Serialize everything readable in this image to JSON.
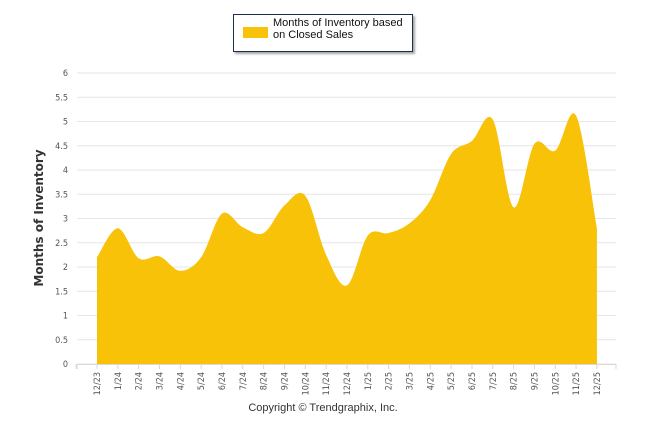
{
  "chart_data": {
    "type": "area",
    "title": "",
    "xlabel": "",
    "ylabel": "Months of Inventory",
    "ylim": [
      0,
      6
    ],
    "yticks": [
      "0",
      "0.5",
      "1",
      "1.5",
      "2",
      "2.5",
      "3",
      "3.5",
      "4",
      "4.5",
      "5",
      "5.5",
      "6"
    ],
    "grid": true,
    "legend_position": "top-center",
    "categories": [
      "12/23",
      "1/24",
      "2/24",
      "3/24",
      "4/24",
      "5/24",
      "6/24",
      "7/24",
      "8/24",
      "9/24",
      "10/24",
      "11/24",
      "12/24",
      "1/25",
      "2/25",
      "3/25",
      "4/25",
      "5/25",
      "6/25",
      "7/25",
      "8/25",
      "9/25",
      "10/25",
      "11/25",
      "12/25"
    ],
    "series": [
      {
        "name": "Months of Inventory based on Closed Sales",
        "color": "#f7c208",
        "values": [
          2.2,
          2.8,
          2.18,
          2.22,
          1.92,
          2.2,
          3.1,
          2.82,
          2.7,
          3.27,
          3.47,
          2.25,
          1.62,
          2.65,
          2.7,
          2.9,
          3.38,
          4.33,
          4.6,
          5.04,
          3.23,
          4.54,
          4.4,
          5.12,
          2.8
        ]
      }
    ]
  },
  "legend": {
    "label": "Months of Inventory based on Closed Sales"
  },
  "footer": {
    "copyright": "Copyright © Trendgraphix, Inc."
  }
}
